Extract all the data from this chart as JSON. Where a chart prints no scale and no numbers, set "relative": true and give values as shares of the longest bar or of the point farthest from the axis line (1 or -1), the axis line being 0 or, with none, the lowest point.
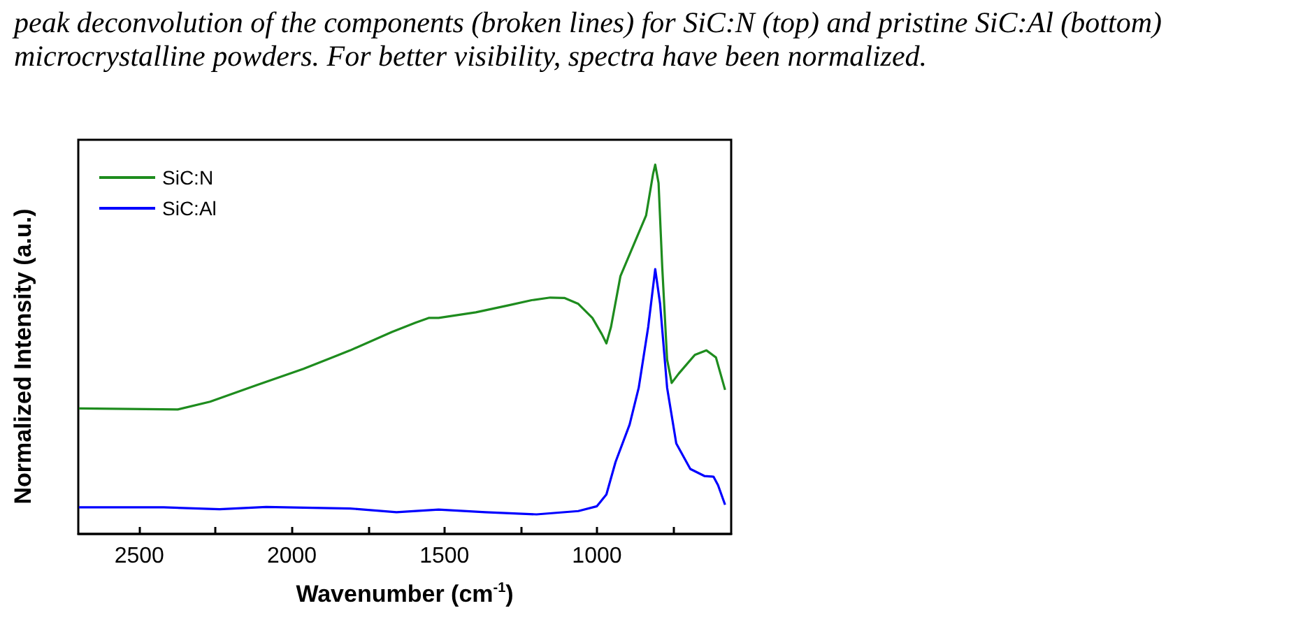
{
  "chart_data": {
    "type": "line",
    "relative": true,
    "annotations": [
      "peak deconvolution of the components (broken lines) for SiC:N (top) and pristine SiC:Al (bottom) microcrystalline powders. For better visibility, spectra have been normalized."
    ],
    "xlabel": "Wavenumber (cm$^{-1}$)",
    "ylabel": "Normalized Intensity (a.u.)",
    "xlim": [
      2700,
      560
    ],
    "xticks": [
      2500,
      {
        "value": 2250,
        "label": null
      },
      2000,
      {
        "value": 1750,
        "label": null
      },
      1500,
      {
        "value": 1250,
        "label": null
      },
      1000,
      {
        "value": 750,
        "label": null
      }
    ],
    "legend": "top left",
    "grid": false,
    "marker": "none",
    "line_style": "solid",
    "series": [
      {
        "name": "SiC:N",
        "color": "#1e8c1e",
        "x": [
          2698,
          2374,
          2268,
          2115,
          1962,
          1809,
          1672,
          1595,
          1550,
          1519,
          1397,
          1290,
          1214,
          1153,
          1107,
          1061,
          1015,
          984,
          969,
          954,
          923,
          878,
          839,
          816,
          809,
          798,
          786,
          770,
          755,
          732,
          679,
          641,
          610,
          580
        ],
        "values": [
          0.34,
          0.337,
          0.358,
          0.403,
          0.447,
          0.497,
          0.547,
          0.572,
          0.585,
          0.585,
          0.6,
          0.619,
          0.633,
          0.64,
          0.639,
          0.623,
          0.585,
          0.541,
          0.516,
          0.56,
          0.698,
          0.786,
          0.862,
          0.975,
          1.0,
          0.95,
          0.723,
          0.472,
          0.409,
          0.434,
          0.485,
          0.497,
          0.478,
          0.39
        ]
      },
      {
        "name": "SiC:Al",
        "color": "#0000ff",
        "x": [
          2698,
          2573,
          2420,
          2237,
          2084,
          1809,
          1657,
          1519,
          1366,
          1198,
          1061,
          1000,
          969,
          939,
          893,
          863,
          832,
          809,
          793,
          770,
          740,
          694,
          648,
          618,
          603,
          580
        ],
        "values": [
          0.072,
          0.072,
          0.072,
          0.067,
          0.073,
          0.069,
          0.059,
          0.066,
          0.059,
          0.053,
          0.062,
          0.075,
          0.107,
          0.195,
          0.296,
          0.396,
          0.56,
          0.717,
          0.623,
          0.396,
          0.245,
          0.176,
          0.157,
          0.155,
          0.132,
          0.079
        ]
      }
    ]
  }
}
